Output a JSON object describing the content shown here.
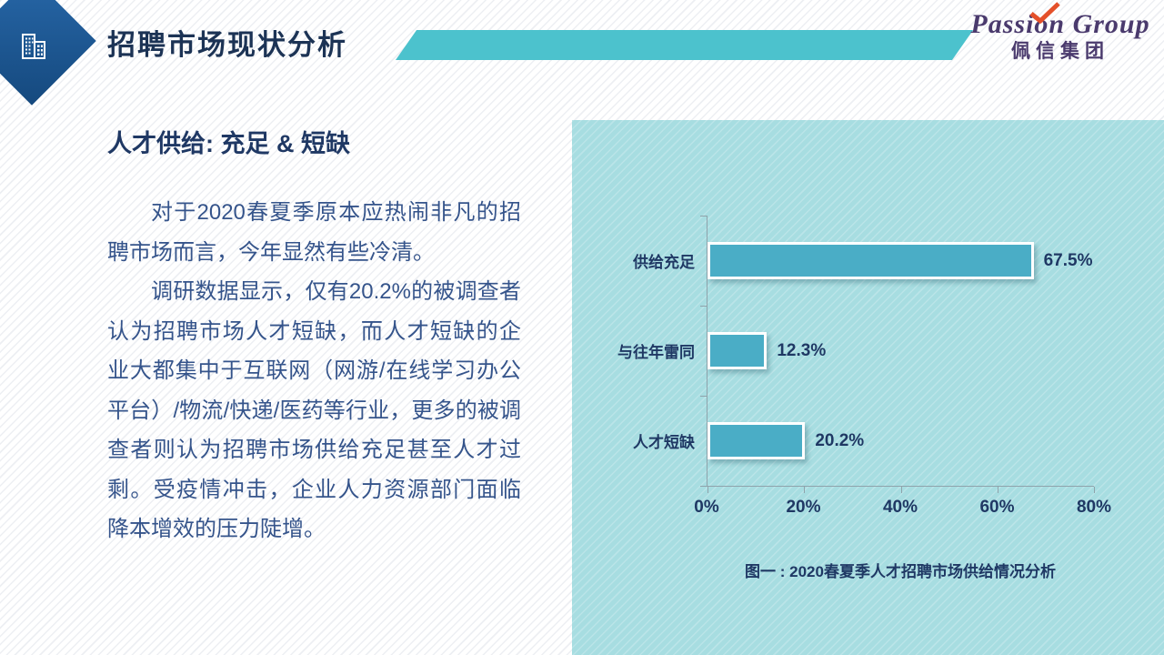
{
  "header": {
    "title": "招聘市场现状分析",
    "logo": {
      "name": "Passion Group",
      "subname": "佩信集团"
    }
  },
  "content": {
    "heading": "人才供给: 充足 & 短缺",
    "paragraphs": [
      "对于2020春夏季原本应热闹非凡的招聘市场而言，今年显然有些冷清。",
      "调研数据显示，仅有20.2%的被调查者认为招聘市场人才短缺，而人才短缺的企业大都集中于互联网（网游/在线学习办公平台）/物流/快递/医药等行业，更多的被调查者则认为招聘市场供给充足甚至人才过剩。受疫情冲击，企业人力资源部门面临降本增效的压力陡增。"
    ]
  },
  "chart_data": {
    "type": "bar",
    "orientation": "horizontal",
    "categories": [
      "供给充足",
      "与往年雷同",
      "人才短缺"
    ],
    "values": [
      67.5,
      12.3,
      20.2
    ],
    "value_labels": [
      "67.5%",
      "12.3%",
      "20.2%"
    ],
    "x_ticks": [
      "0%",
      "20%",
      "40%",
      "60%",
      "80%"
    ],
    "xlim": [
      0,
      80
    ],
    "grid": false,
    "caption": "图一 : 2020春夏季人才招聘市场供给情况分析"
  },
  "colors": {
    "bar": "#4aadc6",
    "panel": "#a7dde1",
    "ribbon": "#4cc2cd",
    "diamond-a": "#2767a8",
    "diamond-b": "#15497e",
    "navy": "#1f3864",
    "title-navy": "#1c3355",
    "body-text": "#35548b",
    "axis": "#8fa3ab",
    "logo-purple": "#4a3a6d",
    "check-orange": "#e4502a"
  }
}
